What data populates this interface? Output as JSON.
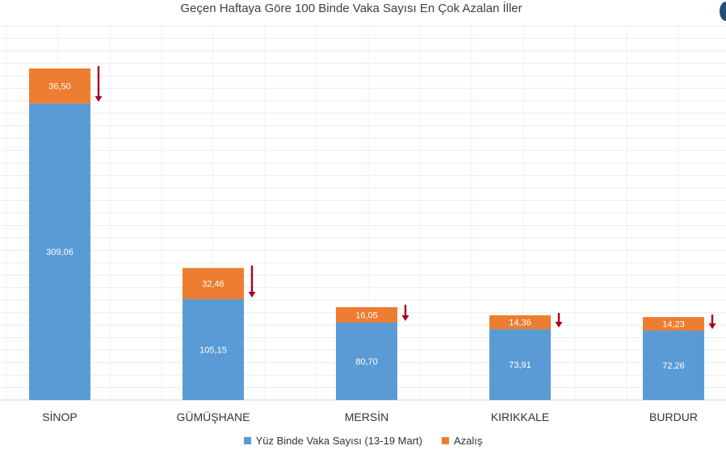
{
  "chart_data": {
    "type": "bar",
    "stacked": true,
    "title": "Geçen Haftaya Göre 100 Binde Vaka Sayısı En Çok Azalan İller",
    "categories": [
      "SİNOP",
      "GÜMÜŞHANE",
      "MERSİN",
      "KIRIKKALE",
      "BURDUR"
    ],
    "series": [
      {
        "name": "Yüz Binde Vaka Sayısı (13-19 Mart)",
        "color": "#5b9bd5",
        "values": [
          309.06,
          105.15,
          80.7,
          73.91,
          72.26
        ],
        "labels": [
          "309,06",
          "105,15",
          "80,70",
          "73,91",
          "72,26"
        ]
      },
      {
        "name": "Azalış",
        "color": "#ed7d31",
        "values": [
          36.5,
          32.46,
          16.05,
          14.36,
          14.23
        ],
        "labels": [
          "36,50",
          "32,46",
          "16,05",
          "14,36",
          "14,23"
        ]
      }
    ],
    "ylim": [
      0,
      390
    ],
    "grid": true,
    "legend": "bottom-center",
    "decrease_arrow_color": "#a50021",
    "xlabel": "",
    "ylabel": ""
  }
}
